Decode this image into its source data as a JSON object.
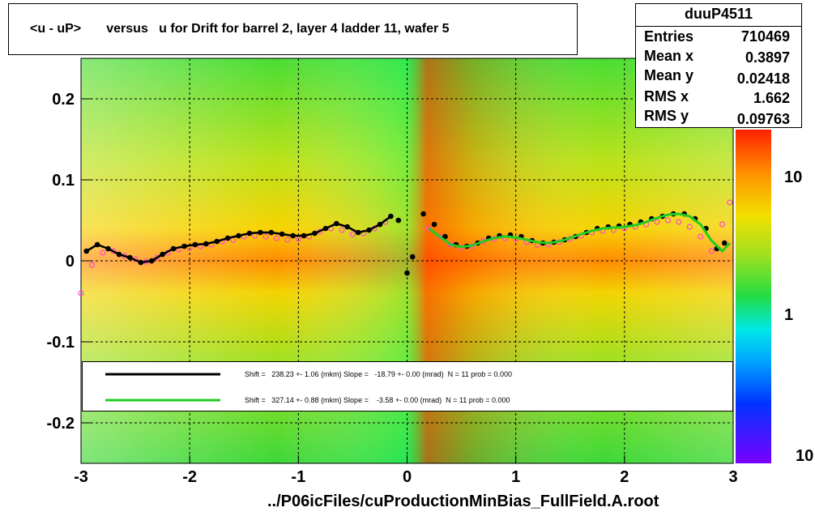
{
  "title": "<u - uP>       versus   u for Drift for barrel 2, layer 4 ladder 11, wafer 5",
  "stats": {
    "name": "duuP4511",
    "rows": [
      {
        "label": "Entries",
        "value": "710469"
      },
      {
        "label": "Mean x",
        "value": "0.3897"
      },
      {
        "label": "Mean y",
        "value": "0.02418"
      },
      {
        "label": "RMS x",
        "value": "1.662"
      },
      {
        "label": "RMS y",
        "value": "0.09763"
      }
    ]
  },
  "fit_legend": [
    {
      "text": "Shift =   238.23 +- 1.06 (mkm) Slope =   -18.79 +- 0.00 (mrad)  N = 11 prob = 0.000",
      "color": "#000000"
    },
    {
      "text": "Shift =   327.14 +- 0.88 (mkm) Slope =    -3.58 +- 0.00 (mrad)  N = 11 prob = 0.000",
      "color": "#22cc22"
    }
  ],
  "footer": "../P06icFiles/cuProductionMinBias_FullField.A.root",
  "colors": {
    "heat_low": "#22dd44",
    "heat_mid": "#f2e000",
    "heat_high": "#ff3a00",
    "profile_black": "#000000",
    "profile_magenta": "#ff44cc",
    "fit_green": "#22cc22"
  },
  "chart_data": {
    "type": "heatmap",
    "xlim": [
      -3,
      3
    ],
    "ylim": [
      -0.25,
      0.25
    ],
    "x_ticks": [
      "-3",
      "-2",
      "-1",
      "0",
      "1",
      "2",
      "3"
    ],
    "y_ticks": [
      "-0.2",
      "-0.1",
      "0",
      "0.1",
      "0.2"
    ],
    "z_ticks": [
      "10",
      "1",
      "10"
    ],
    "grid": true,
    "profile_black": {
      "x": [
        -2.95,
        -2.85,
        -2.75,
        -2.65,
        -2.55,
        -2.45,
        -2.35,
        -2.25,
        -2.15,
        -2.05,
        -1.95,
        -1.85,
        -1.75,
        -1.65,
        -1.55,
        -1.45,
        -1.35,
        -1.25,
        -1.15,
        -1.05,
        -0.95,
        -0.85,
        -0.75,
        -0.65,
        -0.55,
        -0.45,
        -0.35,
        -0.25,
        -0.15,
        -0.08,
        0.0,
        0.05,
        0.15,
        0.25,
        0.35,
        0.45,
        0.55,
        0.65,
        0.75,
        0.85,
        0.95,
        1.05,
        1.15,
        1.25,
        1.35,
        1.45,
        1.55,
        1.65,
        1.75,
        1.85,
        1.95,
        2.05,
        2.15,
        2.25,
        2.35,
        2.45,
        2.55,
        2.65,
        2.75,
        2.85,
        2.92
      ],
      "y": [
        0.012,
        0.02,
        0.015,
        0.008,
        0.004,
        -0.002,
        0.0,
        0.008,
        0.015,
        0.018,
        0.02,
        0.021,
        0.024,
        0.028,
        0.031,
        0.034,
        0.035,
        0.035,
        0.033,
        0.031,
        0.031,
        0.034,
        0.04,
        0.046,
        0.042,
        0.035,
        0.038,
        0.045,
        0.055,
        0.05,
        -0.015,
        0.005,
        0.058,
        0.045,
        0.03,
        0.02,
        0.018,
        0.022,
        0.028,
        0.031,
        0.032,
        0.03,
        0.025,
        0.022,
        0.023,
        0.026,
        0.03,
        0.035,
        0.04,
        0.042,
        0.043,
        0.045,
        0.048,
        0.052,
        0.055,
        0.058,
        0.058,
        0.052,
        0.04,
        0.015,
        0.022
      ]
    },
    "profile_magenta": {
      "x": [
        -3.0,
        -2.9,
        -2.8,
        -2.7,
        -2.6,
        -2.5,
        -2.4,
        -2.3,
        -2.2,
        -2.1,
        -2.0,
        -1.9,
        -1.8,
        -1.7,
        -1.6,
        -1.5,
        -1.4,
        -1.3,
        -1.2,
        -1.1,
        -1.0,
        -0.9,
        -0.8,
        -0.7,
        -0.6,
        -0.5,
        -0.4,
        -0.3,
        -0.2,
        0.2,
        0.3,
        0.4,
        0.5,
        0.6,
        0.7,
        0.8,
        0.9,
        1.0,
        1.1,
        1.2,
        1.3,
        1.4,
        1.5,
        1.6,
        1.7,
        1.8,
        1.9,
        2.0,
        2.1,
        2.2,
        2.3,
        2.4,
        2.5,
        2.6,
        2.7,
        2.8,
        2.9,
        2.97
      ],
      "y": [
        -0.04,
        -0.005,
        0.01,
        0.012,
        0.006,
        0.002,
        -0.001,
        0.004,
        0.01,
        0.014,
        0.016,
        0.018,
        0.02,
        0.024,
        0.026,
        0.03,
        0.031,
        0.03,
        0.028,
        0.026,
        0.027,
        0.03,
        0.036,
        0.04,
        0.038,
        0.033,
        0.034,
        0.04,
        0.048,
        0.04,
        0.03,
        0.02,
        0.016,
        0.018,
        0.024,
        0.027,
        0.028,
        0.027,
        0.023,
        0.02,
        0.02,
        0.023,
        0.027,
        0.031,
        0.035,
        0.037,
        0.038,
        0.04,
        0.042,
        0.045,
        0.048,
        0.05,
        0.048,
        0.042,
        0.03,
        0.012,
        0.045,
        0.072
      ]
    },
    "fit_green_line": {
      "x": [
        0.2,
        0.3,
        0.4,
        0.5,
        0.6,
        0.7,
        0.8,
        0.9,
        1.0,
        1.1,
        1.2,
        1.3,
        1.4,
        1.5,
        1.6,
        1.7,
        1.8,
        1.9,
        2.0,
        2.1,
        2.2,
        2.3,
        2.4,
        2.5,
        2.6,
        2.7,
        2.8,
        2.9,
        2.97
      ],
      "y": [
        0.04,
        0.03,
        0.02,
        0.017,
        0.019,
        0.024,
        0.028,
        0.03,
        0.029,
        0.026,
        0.023,
        0.022,
        0.024,
        0.028,
        0.033,
        0.037,
        0.04,
        0.041,
        0.042,
        0.044,
        0.048,
        0.053,
        0.057,
        0.058,
        0.055,
        0.045,
        0.025,
        0.012,
        0.022
      ]
    }
  }
}
